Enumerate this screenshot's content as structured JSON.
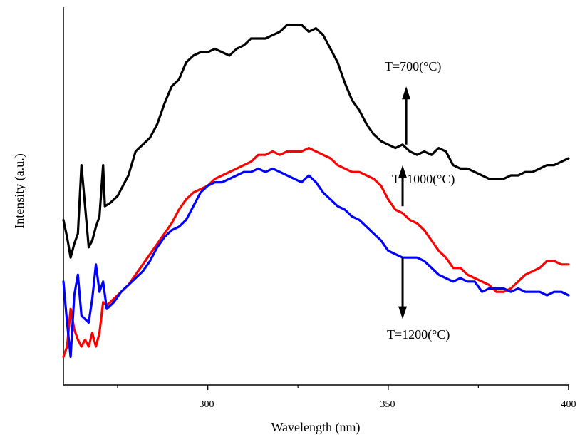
{
  "chart_data": {
    "type": "line",
    "title": "",
    "xlabel": "Wavelength (nm)",
    "ylabel": "Intensity (a.u.)",
    "xlim": [
      260,
      400
    ],
    "ylim": [
      0,
      1
    ],
    "x_ticks": [
      {
        "value": 300,
        "label": "300"
      },
      {
        "value": 350,
        "label": "350"
      },
      {
        "value": 400,
        "label": "400"
      }
    ],
    "x_minor_ticks": [
      275,
      325,
      375
    ],
    "y_ticks": "none",
    "grid": false,
    "legend": "none",
    "series": [
      {
        "color": "#000000",
        "points": [
          [
            260,
            0.42
          ],
          [
            261,
            0.37
          ],
          [
            262,
            0.31
          ],
          [
            263,
            0.35
          ],
          [
            264,
            0.38
          ],
          [
            265,
            0.58
          ],
          [
            266,
            0.46
          ],
          [
            267,
            0.34
          ],
          [
            268,
            0.36
          ],
          [
            269,
            0.4
          ],
          [
            270,
            0.43
          ],
          [
            271,
            0.58
          ],
          [
            271.5,
            0.46
          ],
          [
            273,
            0.47
          ],
          [
            275,
            0.49
          ],
          [
            278,
            0.55
          ],
          [
            280,
            0.62
          ],
          [
            282,
            0.64
          ],
          [
            284,
            0.66
          ],
          [
            286,
            0.7
          ],
          [
            288,
            0.76
          ],
          [
            290,
            0.81
          ],
          [
            292,
            0.83
          ],
          [
            294,
            0.88
          ],
          [
            296,
            0.9
          ],
          [
            298,
            0.91
          ],
          [
            300,
            0.91
          ],
          [
            302,
            0.92
          ],
          [
            304,
            0.91
          ],
          [
            306,
            0.9
          ],
          [
            308,
            0.92
          ],
          [
            310,
            0.93
          ],
          [
            312,
            0.95
          ],
          [
            314,
            0.95
          ],
          [
            316,
            0.95
          ],
          [
            318,
            0.96
          ],
          [
            320,
            0.97
          ],
          [
            322,
            0.99
          ],
          [
            324,
            0.99
          ],
          [
            326,
            0.99
          ],
          [
            328,
            0.97
          ],
          [
            330,
            0.98
          ],
          [
            332,
            0.96
          ],
          [
            334,
            0.92
          ],
          [
            336,
            0.88
          ],
          [
            338,
            0.82
          ],
          [
            340,
            0.77
          ],
          [
            342,
            0.74
          ],
          [
            344,
            0.7
          ],
          [
            346,
            0.67
          ],
          [
            348,
            0.65
          ],
          [
            350,
            0.64
          ],
          [
            352,
            0.63
          ],
          [
            354,
            0.64
          ],
          [
            356,
            0.62
          ],
          [
            358,
            0.61
          ],
          [
            360,
            0.62
          ],
          [
            362,
            0.61
          ],
          [
            364,
            0.63
          ],
          [
            366,
            0.62
          ],
          [
            368,
            0.58
          ],
          [
            370,
            0.57
          ],
          [
            372,
            0.57
          ],
          [
            374,
            0.56
          ],
          [
            376,
            0.55
          ],
          [
            378,
            0.54
          ],
          [
            380,
            0.54
          ],
          [
            382,
            0.54
          ],
          [
            384,
            0.55
          ],
          [
            386,
            0.55
          ],
          [
            388,
            0.56
          ],
          [
            390,
            0.56
          ],
          [
            392,
            0.57
          ],
          [
            394,
            0.58
          ],
          [
            396,
            0.58
          ],
          [
            398,
            0.59
          ],
          [
            400,
            0.6
          ]
        ]
      },
      {
        "color": "#ff0000",
        "points": [
          [
            260,
            0.02
          ],
          [
            261,
            0.05
          ],
          [
            262,
            0.16
          ],
          [
            263,
            0.1
          ],
          [
            264,
            0.07
          ],
          [
            265,
            0.05
          ],
          [
            266,
            0.07
          ],
          [
            267,
            0.05
          ],
          [
            268,
            0.09
          ],
          [
            269,
            0.05
          ],
          [
            270,
            0.09
          ],
          [
            271,
            0.18
          ],
          [
            272,
            0.17
          ],
          [
            274,
            0.19
          ],
          [
            276,
            0.21
          ],
          [
            278,
            0.23
          ],
          [
            280,
            0.26
          ],
          [
            282,
            0.29
          ],
          [
            284,
            0.32
          ],
          [
            286,
            0.35
          ],
          [
            288,
            0.38
          ],
          [
            290,
            0.41
          ],
          [
            292,
            0.45
          ],
          [
            294,
            0.48
          ],
          [
            296,
            0.5
          ],
          [
            298,
            0.51
          ],
          [
            300,
            0.52
          ],
          [
            302,
            0.54
          ],
          [
            304,
            0.55
          ],
          [
            306,
            0.56
          ],
          [
            308,
            0.57
          ],
          [
            310,
            0.58
          ],
          [
            312,
            0.59
          ],
          [
            314,
            0.61
          ],
          [
            316,
            0.61
          ],
          [
            318,
            0.62
          ],
          [
            320,
            0.61
          ],
          [
            322,
            0.62
          ],
          [
            324,
            0.62
          ],
          [
            326,
            0.62
          ],
          [
            328,
            0.63
          ],
          [
            330,
            0.62
          ],
          [
            332,
            0.61
          ],
          [
            334,
            0.6
          ],
          [
            336,
            0.58
          ],
          [
            338,
            0.57
          ],
          [
            340,
            0.56
          ],
          [
            342,
            0.56
          ],
          [
            344,
            0.55
          ],
          [
            346,
            0.54
          ],
          [
            348,
            0.52
          ],
          [
            350,
            0.48
          ],
          [
            352,
            0.45
          ],
          [
            354,
            0.44
          ],
          [
            356,
            0.42
          ],
          [
            358,
            0.41
          ],
          [
            360,
            0.39
          ],
          [
            362,
            0.36
          ],
          [
            364,
            0.33
          ],
          [
            366,
            0.31
          ],
          [
            368,
            0.28
          ],
          [
            370,
            0.28
          ],
          [
            372,
            0.26
          ],
          [
            374,
            0.25
          ],
          [
            376,
            0.24
          ],
          [
            378,
            0.23
          ],
          [
            380,
            0.21
          ],
          [
            382,
            0.21
          ],
          [
            384,
            0.22
          ],
          [
            386,
            0.24
          ],
          [
            388,
            0.26
          ],
          [
            390,
            0.27
          ],
          [
            392,
            0.28
          ],
          [
            394,
            0.3
          ],
          [
            396,
            0.3
          ],
          [
            398,
            0.29
          ],
          [
            400,
            0.29
          ]
        ]
      },
      {
        "color": "#0000ff",
        "points": [
          [
            260,
            0.24
          ],
          [
            261,
            0.12
          ],
          [
            262,
            0.02
          ],
          [
            263,
            0.2
          ],
          [
            264,
            0.26
          ],
          [
            265,
            0.14
          ],
          [
            266,
            0.13
          ],
          [
            267,
            0.12
          ],
          [
            268,
            0.19
          ],
          [
            269,
            0.29
          ],
          [
            270,
            0.21
          ],
          [
            271,
            0.24
          ],
          [
            272,
            0.16
          ],
          [
            274,
            0.18
          ],
          [
            276,
            0.21
          ],
          [
            278,
            0.23
          ],
          [
            280,
            0.25
          ],
          [
            282,
            0.27
          ],
          [
            284,
            0.3
          ],
          [
            286,
            0.34
          ],
          [
            288,
            0.37
          ],
          [
            290,
            0.39
          ],
          [
            292,
            0.4
          ],
          [
            294,
            0.42
          ],
          [
            296,
            0.46
          ],
          [
            298,
            0.5
          ],
          [
            300,
            0.52
          ],
          [
            302,
            0.53
          ],
          [
            304,
            0.53
          ],
          [
            306,
            0.54
          ],
          [
            308,
            0.55
          ],
          [
            310,
            0.56
          ],
          [
            312,
            0.56
          ],
          [
            314,
            0.57
          ],
          [
            316,
            0.56
          ],
          [
            318,
            0.57
          ],
          [
            320,
            0.56
          ],
          [
            322,
            0.55
          ],
          [
            324,
            0.54
          ],
          [
            326,
            0.53
          ],
          [
            328,
            0.55
          ],
          [
            330,
            0.53
          ],
          [
            332,
            0.5
          ],
          [
            334,
            0.48
          ],
          [
            336,
            0.46
          ],
          [
            338,
            0.45
          ],
          [
            340,
            0.43
          ],
          [
            342,
            0.42
          ],
          [
            344,
            0.4
          ],
          [
            346,
            0.38
          ],
          [
            348,
            0.36
          ],
          [
            350,
            0.33
          ],
          [
            352,
            0.32
          ],
          [
            354,
            0.31
          ],
          [
            356,
            0.31
          ],
          [
            358,
            0.31
          ],
          [
            360,
            0.3
          ],
          [
            362,
            0.28
          ],
          [
            364,
            0.26
          ],
          [
            366,
            0.25
          ],
          [
            368,
            0.24
          ],
          [
            370,
            0.25
          ],
          [
            372,
            0.24
          ],
          [
            374,
            0.24
          ],
          [
            376,
            0.21
          ],
          [
            378,
            0.22
          ],
          [
            380,
            0.22
          ],
          [
            382,
            0.22
          ],
          [
            384,
            0.21
          ],
          [
            386,
            0.22
          ],
          [
            388,
            0.21
          ],
          [
            390,
            0.21
          ],
          [
            392,
            0.21
          ],
          [
            394,
            0.2
          ],
          [
            396,
            0.21
          ],
          [
            398,
            0.21
          ],
          [
            400,
            0.2
          ]
        ]
      }
    ],
    "annotations": [
      {
        "text": "T=700(°C)",
        "arrow_x": 355,
        "arrow_from": 0.64,
        "arrow_to": 0.81,
        "arrow_dir": "up"
      },
      {
        "text": "T=1000(°C)",
        "arrow_x": 354,
        "arrow_from": 0.46,
        "arrow_to": 0.58,
        "arrow_dir": "up"
      },
      {
        "text": "T=1200(°C)",
        "arrow_x": 354,
        "arrow_from": 0.31,
        "arrow_to": 0.13,
        "arrow_dir": "down"
      }
    ]
  }
}
